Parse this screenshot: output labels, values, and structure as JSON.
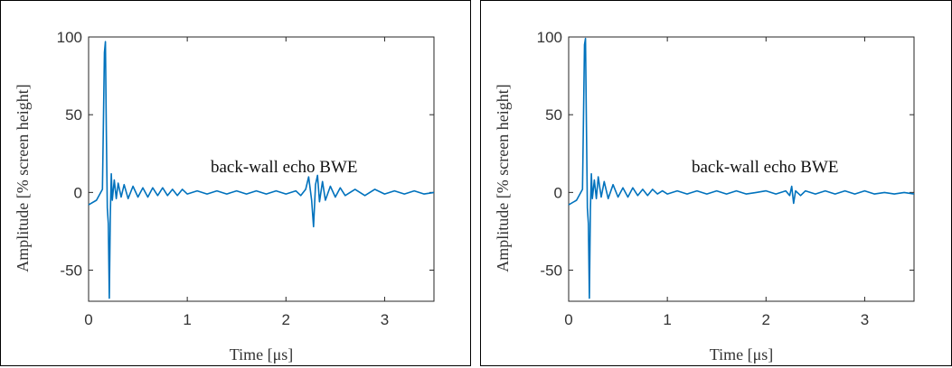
{
  "colors": {
    "line": "#0072BD",
    "axis": "#262626"
  },
  "chart_data": [
    {
      "type": "line",
      "title": "",
      "xlabel": "Time [μs]",
      "ylabel": "Amplitude [% screen height]",
      "xlim": [
        0,
        3.5
      ],
      "ylim": [
        -70,
        100
      ],
      "xticks": [
        0,
        1,
        2,
        3
      ],
      "yticks": [
        -50,
        0,
        50,
        100
      ],
      "annotation": "back-wall echo BWE",
      "series": [
        {
          "x": [
            0,
            0.08,
            0.14,
            0.16,
            0.17,
            0.18,
            0.19,
            0.2,
            0.21,
            0.22,
            0.23,
            0.24,
            0.26,
            0.28,
            0.3,
            0.33,
            0.36,
            0.4,
            0.45,
            0.5,
            0.55,
            0.6,
            0.65,
            0.7,
            0.75,
            0.8,
            0.85,
            0.9,
            0.95,
            1.0,
            1.1,
            1.2,
            1.3,
            1.4,
            1.5,
            1.6,
            1.7,
            1.8,
            1.9,
            2.0,
            2.1,
            2.15,
            2.2,
            2.23,
            2.26,
            2.28,
            2.3,
            2.32,
            2.34,
            2.37,
            2.4,
            2.45,
            2.5,
            2.55,
            2.6,
            2.7,
            2.8,
            2.9,
            3.0,
            3.1,
            3.2,
            3.3,
            3.4,
            3.5
          ],
          "y": [
            -8,
            -5,
            2,
            90,
            97,
            40,
            -10,
            -20,
            -68,
            -15,
            12,
            -5,
            8,
            -4,
            6,
            -3,
            5,
            -4,
            4,
            -3,
            3,
            -3,
            3,
            -2,
            3,
            -2,
            2,
            -2,
            2,
            -1,
            1,
            -1,
            1,
            -1,
            1,
            -1,
            1,
            -1,
            1,
            -1,
            1,
            -2,
            2,
            10,
            -5,
            -22,
            5,
            11,
            -6,
            7,
            -5,
            4,
            -3,
            3,
            -2,
            2,
            -2,
            2,
            -1,
            1,
            -1,
            1,
            -1,
            0
          ]
        }
      ]
    },
    {
      "type": "line",
      "title": "",
      "xlabel": "Time [μs]",
      "ylabel": "Amplitude [% screen height]",
      "xlim": [
        0,
        3.5
      ],
      "ylim": [
        -70,
        100
      ],
      "xticks": [
        0,
        1,
        2,
        3
      ],
      "yticks": [
        -50,
        0,
        50,
        100
      ],
      "annotation": "back-wall echo BWE",
      "series": [
        {
          "x": [
            0,
            0.08,
            0.14,
            0.16,
            0.17,
            0.18,
            0.19,
            0.2,
            0.21,
            0.22,
            0.23,
            0.24,
            0.26,
            0.28,
            0.3,
            0.33,
            0.36,
            0.4,
            0.45,
            0.5,
            0.55,
            0.6,
            0.65,
            0.7,
            0.75,
            0.8,
            0.85,
            0.9,
            0.95,
            1.0,
            1.1,
            1.2,
            1.3,
            1.4,
            1.5,
            1.6,
            1.7,
            1.8,
            1.9,
            2.0,
            2.1,
            2.2,
            2.24,
            2.26,
            2.28,
            2.3,
            2.35,
            2.4,
            2.5,
            2.6,
            2.7,
            2.8,
            2.9,
            3.0,
            3.1,
            3.2,
            3.3,
            3.4,
            3.5
          ],
          "y": [
            -8,
            -5,
            2,
            95,
            99,
            45,
            -10,
            -20,
            -68,
            -12,
            12,
            -4,
            8,
            -4,
            10,
            -3,
            7,
            -4,
            5,
            -3,
            3,
            -3,
            3,
            -2,
            2,
            -2,
            2,
            -1,
            1,
            -1,
            1,
            -1,
            1,
            -1,
            1,
            -1,
            1,
            -1,
            0,
            1,
            -1,
            1,
            -2,
            4,
            -7,
            1,
            -2,
            1,
            -1,
            1,
            -1,
            1,
            -1,
            1,
            -1,
            0,
            -1,
            0,
            -1
          ]
        }
      ]
    }
  ]
}
